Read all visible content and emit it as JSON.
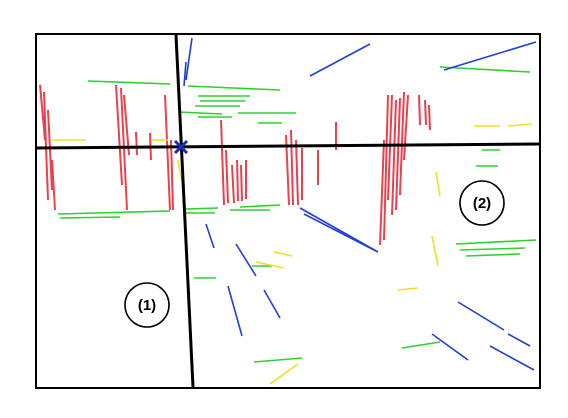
{
  "regions": {
    "region_1": {
      "label": "(1)"
    },
    "region_2": {
      "label": "(2)"
    }
  },
  "colors": {
    "vertical_segments": "#e8424f",
    "horizontal_segments": "#2fd02f",
    "blue_segments": "#2040d0",
    "yellow_segments": "#f0e020",
    "vanishing_point_marker": "#1c2fb0",
    "axis_lines": "#000000"
  },
  "icons": {
    "vanishing_point": "x-marker-icon"
  }
}
